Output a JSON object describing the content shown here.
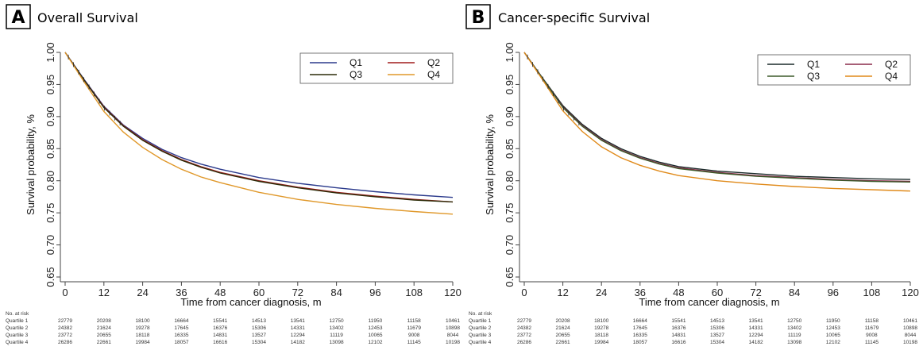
{
  "chart_data": [
    {
      "type": "line",
      "panel_label": "A",
      "title": "Overall Survival",
      "xlabel": "Time from cancer diagnosis, m",
      "ylabel": "Survival probability, %",
      "xlim": [
        0,
        120
      ],
      "ylim": [
        0.65,
        1.0
      ],
      "x_ticks": [
        "0",
        "12",
        "24",
        "36",
        "48",
        "60",
        "72",
        "84",
        "96",
        "108",
        "120"
      ],
      "y_ticks": [
        "0.65",
        "0.70",
        "0.75",
        "0.80",
        "0.85",
        "0.90",
        "0.95",
        "1.00"
      ],
      "grid": false,
      "legend_position": "top-right",
      "x": [
        0,
        6,
        12,
        18,
        24,
        30,
        36,
        42,
        48,
        60,
        72,
        84,
        96,
        108,
        120
      ],
      "series": [
        {
          "name": "Q1",
          "color": "#2b3a8c",
          "values": [
            1.0,
            0.957,
            0.916,
            0.887,
            0.866,
            0.849,
            0.836,
            0.826,
            0.818,
            0.805,
            0.796,
            0.789,
            0.783,
            0.778,
            0.774
          ]
        },
        {
          "name": "Q2",
          "color": "#a01c1c",
          "values": [
            1.0,
            0.956,
            0.915,
            0.886,
            0.864,
            0.847,
            0.833,
            0.822,
            0.813,
            0.8,
            0.79,
            0.782,
            0.776,
            0.771,
            0.767
          ]
        },
        {
          "name": "Q3",
          "color": "#2c2c08",
          "values": [
            1.0,
            0.956,
            0.914,
            0.885,
            0.863,
            0.846,
            0.832,
            0.821,
            0.812,
            0.799,
            0.789,
            0.781,
            0.775,
            0.77,
            0.767
          ]
        },
        {
          "name": "Q4",
          "color": "#e0982a",
          "values": [
            1.0,
            0.953,
            0.908,
            0.876,
            0.852,
            0.833,
            0.818,
            0.806,
            0.797,
            0.782,
            0.771,
            0.763,
            0.757,
            0.752,
            0.748
          ]
        }
      ],
      "risk_table": {
        "header": "No. at risk",
        "rows": [
          {
            "label": "Quartile 1",
            "values": [
              "22779",
              "20208",
              "18100",
              "16664",
              "15541",
              "14513",
              "13541",
              "12750",
              "11950",
              "11158",
              "10461"
            ]
          },
          {
            "label": "Quartile 2",
            "values": [
              "24382",
              "21624",
              "19278",
              "17645",
              "16376",
              "15306",
              "14331",
              "13402",
              "12453",
              "11679",
              "10898"
            ]
          },
          {
            "label": "Quartile 3",
            "values": [
              "23772",
              "20655",
              "18118",
              "16335",
              "14831",
              "13527",
              "12294",
              "11119",
              "10065",
              "9008",
              "8044"
            ]
          },
          {
            "label": "Quartile 4",
            "values": [
              "26286",
              "22661",
              "19984",
              "18057",
              "16616",
              "15304",
              "14182",
              "13098",
              "12102",
              "11145",
              "10198"
            ]
          }
        ]
      }
    },
    {
      "type": "line",
      "panel_label": "B",
      "title": "Cancer-specific Survival",
      "xlabel": "Time from cancer diagnosis, m",
      "ylabel": "Survival probability, %",
      "xlim": [
        0,
        120
      ],
      "ylim": [
        0.65,
        1.0
      ],
      "x_ticks": [
        "0",
        "12",
        "24",
        "36",
        "48",
        "60",
        "72",
        "84",
        "96",
        "108",
        "120"
      ],
      "y_ticks": [
        "0.65",
        "0.70",
        "0.75",
        "0.80",
        "0.85",
        "0.90",
        "0.95",
        "1.00"
      ],
      "grid": false,
      "legend_position": "top-right",
      "x": [
        0,
        6,
        12,
        18,
        24,
        30,
        36,
        42,
        48,
        60,
        72,
        84,
        96,
        108,
        120
      ],
      "series": [
        {
          "name": "Q1",
          "color": "#1a2a2a",
          "values": [
            1.0,
            0.958,
            0.917,
            0.888,
            0.866,
            0.85,
            0.838,
            0.829,
            0.822,
            0.815,
            0.811,
            0.807,
            0.805,
            0.803,
            0.802
          ]
        },
        {
          "name": "Q2",
          "color": "#8a2a4a",
          "values": [
            1.0,
            0.957,
            0.915,
            0.886,
            0.864,
            0.848,
            0.836,
            0.827,
            0.82,
            0.813,
            0.808,
            0.805,
            0.802,
            0.8,
            0.799
          ]
        },
        {
          "name": "Q3",
          "color": "#3d5a2a",
          "values": [
            1.0,
            0.957,
            0.914,
            0.885,
            0.863,
            0.847,
            0.835,
            0.826,
            0.819,
            0.812,
            0.807,
            0.804,
            0.801,
            0.799,
            0.798
          ]
        },
        {
          "name": "Q4",
          "color": "#e08a1a",
          "values": [
            1.0,
            0.955,
            0.909,
            0.877,
            0.853,
            0.836,
            0.824,
            0.815,
            0.808,
            0.8,
            0.795,
            0.791,
            0.788,
            0.786,
            0.784
          ]
        }
      ],
      "risk_table": {
        "header": "No. at risk",
        "rows": [
          {
            "label": "Quartile 1",
            "values": [
              "22779",
              "20208",
              "18100",
              "16664",
              "15541",
              "14513",
              "13541",
              "12750",
              "11950",
              "11158",
              "10461"
            ]
          },
          {
            "label": "Quartile 2",
            "values": [
              "24382",
              "21624",
              "19278",
              "17645",
              "16376",
              "15306",
              "14331",
              "13402",
              "12453",
              "11679",
              "10898"
            ]
          },
          {
            "label": "Quartile 3",
            "values": [
              "23772",
              "20655",
              "18118",
              "16335",
              "14831",
              "13527",
              "12294",
              "11119",
              "10065",
              "9008",
              "8044"
            ]
          },
          {
            "label": "Quartile 4",
            "values": [
              "26286",
              "22661",
              "19984",
              "18057",
              "16616",
              "15304",
              "14182",
              "13098",
              "12102",
              "11145",
              "10198"
            ]
          }
        ]
      }
    }
  ]
}
